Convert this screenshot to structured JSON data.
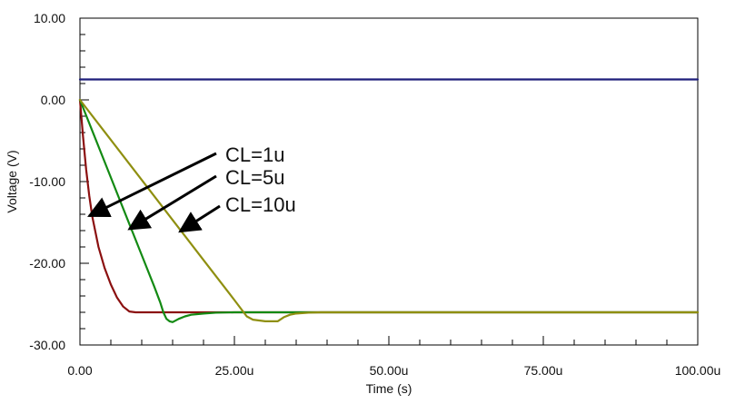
{
  "chart_data": {
    "type": "line",
    "xlabel": "Time (s)",
    "ylabel": "Voltage (V)",
    "xlim": [
      0,
      100
    ],
    "ylim": [
      -30,
      10
    ],
    "x_ticks": [
      0,
      25,
      50,
      75,
      100
    ],
    "x_tick_labels": [
      "0.00",
      "25.00u",
      "50.00u",
      "75.00u",
      "100.00u"
    ],
    "y_ticks": [
      10,
      0,
      -10,
      -20,
      -30
    ],
    "y_tick_labels": [
      "10.00",
      "0.00",
      "-10.00",
      "-20.00",
      "-30.00"
    ],
    "grid": true,
    "series": [
      {
        "color": "#1f1f7a",
        "x": [
          0,
          100
        ],
        "y": [
          2.5,
          2.5
        ]
      },
      {
        "color": "#8b1010",
        "x": [
          0,
          0.5,
          1,
          1.5,
          2,
          3,
          4,
          5,
          6,
          7,
          8,
          9,
          10,
          12,
          20,
          30,
          40,
          100
        ],
        "y": [
          0,
          -4.5,
          -8.5,
          -11.7,
          -14.3,
          -18.0,
          -20.6,
          -22.6,
          -24.2,
          -25.3,
          -25.9,
          -26.0,
          -26.0,
          -26.0,
          -26.0,
          -26.0,
          -26.0,
          -26.0
        ]
      },
      {
        "color": "#138a13",
        "x": [
          0,
          2,
          4,
          6,
          8,
          10,
          12,
          13,
          13.5,
          14,
          14.5,
          15,
          16,
          17,
          18,
          20,
          22,
          25,
          30,
          40,
          100
        ],
        "y": [
          0,
          -3.8,
          -7.6,
          -11.4,
          -15.2,
          -19.0,
          -22.8,
          -24.8,
          -26.0,
          -26.8,
          -27.1,
          -27.2,
          -26.8,
          -26.5,
          -26.3,
          -26.15,
          -26.05,
          -26.0,
          -26.0,
          -26.0,
          -26.0
        ]
      },
      {
        "color": "#8f8f10",
        "x": [
          0,
          5,
          10,
          15,
          20,
          25,
          26,
          27,
          28,
          30,
          32,
          33,
          34,
          35,
          37,
          39,
          40,
          100
        ],
        "y": [
          0,
          -4.9,
          -9.8,
          -14.7,
          -19.6,
          -24.5,
          -25.5,
          -26.5,
          -26.9,
          -27.1,
          -27.1,
          -26.6,
          -26.3,
          -26.15,
          -26.05,
          -26.0,
          -26.0,
          -26.0
        ]
      }
    ],
    "annotations": [
      {
        "text": "CL=1u",
        "arrow_to": [
          1.5,
          -14.2
        ]
      },
      {
        "text": "CL=5u",
        "arrow_to": [
          8.0,
          -15.8
        ]
      },
      {
        "text": "CL=10u",
        "arrow_to": [
          16.2,
          -16.1
        ]
      }
    ]
  }
}
